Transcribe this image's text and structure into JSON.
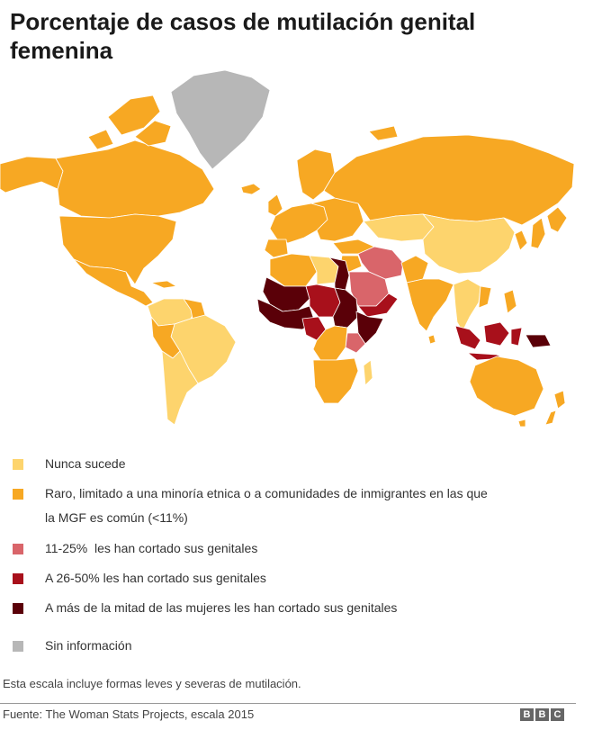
{
  "title": "Porcentaje de casos de mutilación genital femenina",
  "legend": [
    {
      "color": "#fdd46d",
      "label": "Nunca sucede"
    },
    {
      "color": "#f7a823",
      "label": "Raro, limitado a una minoría etnica o a comunidades de inmigrantes en las que la MGF es común (<11%)"
    },
    {
      "color": "#d9656a",
      "label": "11-25%  les han cortado sus genitales"
    },
    {
      "color": "#a8101b",
      "label": "A 26-50% les han cortado sus genitales"
    },
    {
      "color": "#5a0008",
      "label": "A más de la mitad de las mujeres les han cortado sus genitales"
    },
    {
      "color": "#b7b7b7",
      "label": "Sin información"
    }
  ],
  "note": "Esta escala incluye formas leves y severas de mutilación.",
  "source": "Fuente: The Woman Stats Projects, escala 2015",
  "logo": [
    "B",
    "B",
    "C"
  ]
}
